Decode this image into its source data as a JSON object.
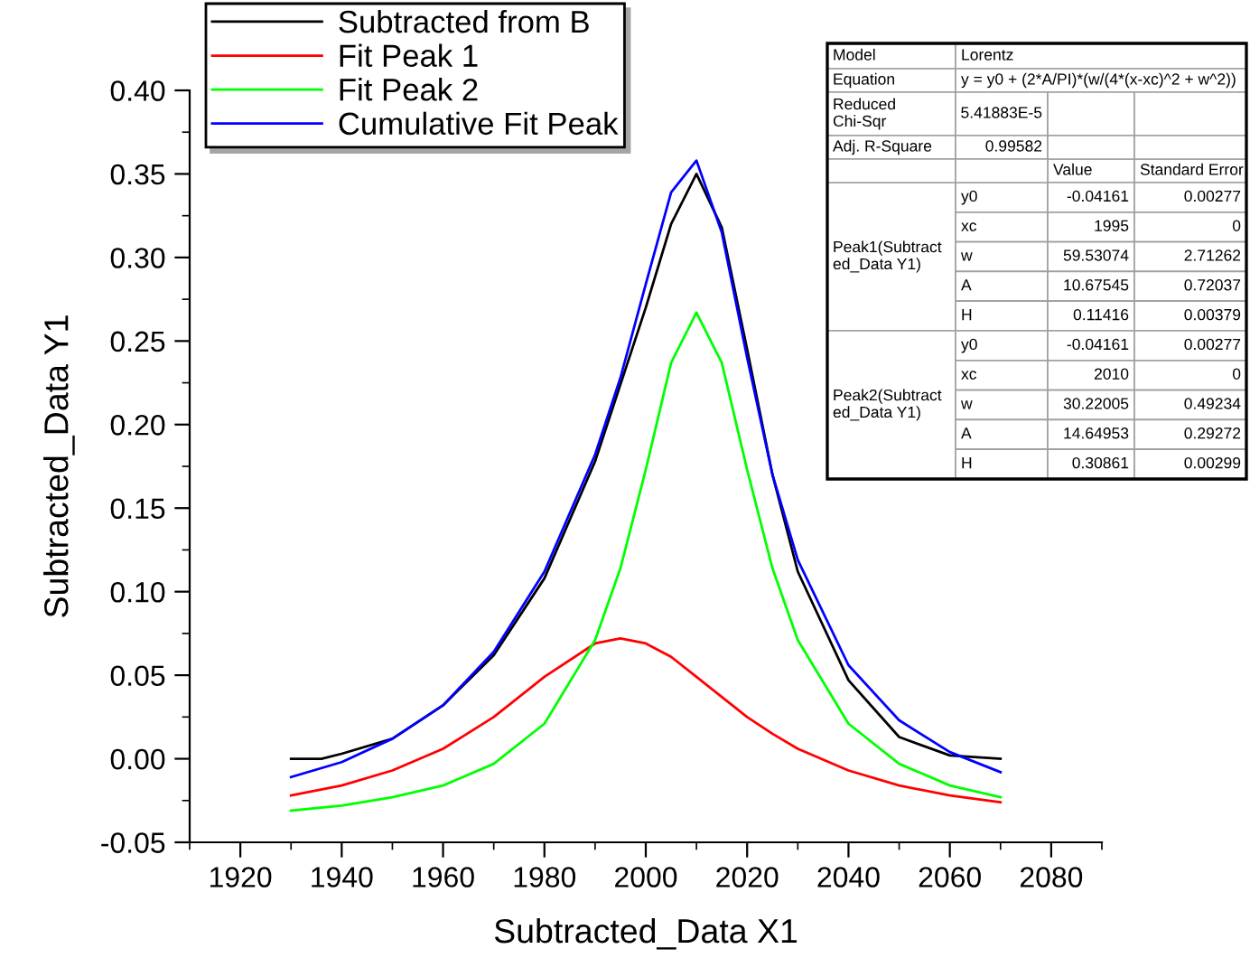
{
  "chart_data": {
    "type": "line",
    "xlabel": "Subtracted_Data X1",
    "ylabel": "Subtracted_Data Y1",
    "xlim": [
      1910,
      2090
    ],
    "xticks": [
      1920,
      1940,
      1960,
      1980,
      2000,
      2020,
      2040,
      2060,
      2080
    ],
    "ylim": [
      -0.05,
      0.4
    ],
    "yticks": [
      {
        "value": -0.05,
        "label": "-0.05"
      },
      {
        "value": 0,
        "label": "0.00"
      },
      {
        "value": 0.05,
        "label": "0.05"
      },
      {
        "value": 0.1,
        "label": "0.10"
      },
      {
        "value": 0.15,
        "label": "0.15"
      },
      {
        "value": 0.2,
        "label": "0.20"
      },
      {
        "value": 0.25,
        "label": "0.25"
      },
      {
        "value": 0.3,
        "label": "0.30"
      },
      {
        "value": 0.35,
        "label": "0.35"
      },
      {
        "value": 0.4,
        "label": "0.40"
      }
    ],
    "grid": false,
    "legend": "top left",
    "line_style": "solid",
    "marker": "none",
    "x": [
      1930,
      1940,
      1950,
      1960,
      1970,
      1980,
      1990,
      1995,
      2000,
      2005,
      2010,
      2015,
      2020,
      2025,
      2030,
      2040,
      2050,
      2060,
      2070
    ],
    "series": [
      {
        "name": "Subtracted from B",
        "color": "#000000",
        "x": [
          1930,
          1936,
          1940,
          1950,
          1960,
          1970,
          1980,
          1990,
          2000,
          2005,
          2010,
          2015,
          2020,
          2025,
          2030,
          2040,
          2050,
          2060,
          2070
        ],
        "values": [
          0.0,
          0.0,
          0.003,
          0.012,
          0.032,
          0.062,
          0.108,
          0.178,
          0.27,
          0.32,
          0.35,
          0.318,
          0.245,
          0.17,
          0.112,
          0.047,
          0.013,
          0.002,
          0.0
        ]
      },
      {
        "name": "Fit Peak 1",
        "color": "#ff0000",
        "values": [
          -0.022,
          -0.016,
          -0.007,
          0.006,
          0.025,
          0.049,
          0.069,
          0.072,
          0.069,
          0.061,
          0.049,
          0.037,
          0.025,
          0.015,
          0.006,
          -0.007,
          -0.016,
          -0.022,
          -0.026
        ]
      },
      {
        "name": "Fit Peak 2",
        "color": "#00ff00",
        "values": [
          -0.031,
          -0.028,
          -0.023,
          -0.016,
          -0.003,
          0.021,
          0.071,
          0.114,
          0.173,
          0.237,
          0.267,
          0.237,
          0.173,
          0.114,
          0.071,
          0.021,
          -0.003,
          -0.016,
          -0.023
        ]
      },
      {
        "name": "Cumulative Fit Peak",
        "color": "#0000ff",
        "values": [
          -0.011,
          -0.002,
          0.012,
          0.032,
          0.064,
          0.112,
          0.182,
          0.228,
          0.284,
          0.339,
          0.358,
          0.315,
          0.24,
          0.17,
          0.119,
          0.056,
          0.023,
          0.004,
          -0.008
        ]
      }
    ],
    "annotations": [
      "Model",
      "Lorentz",
      "Equation",
      "y = y0 + (2*A/PI)*(w/(4*(x-xc)^2 + w^2))",
      "Reduced\nChi-Sqr",
      "5.41883E-5",
      "Adj. R-Square",
      "0.99582",
      "Value",
      "Standard Error",
      "Peak1(Subtract\ned_Data Y1)",
      "y0",
      "-0.04161",
      "0.00277",
      "xc",
      "1995",
      "0",
      "w",
      "59.53074",
      "2.71262",
      "A",
      "10.67545",
      "0.72037",
      "H",
      "0.11416",
      "0.00379",
      "Peak2(Subtract\ned_Data Y1)",
      "y0",
      "-0.04161",
      "0.00277",
      "xc",
      "2010",
      "0",
      "w",
      "30.22005",
      "0.49234",
      "A",
      "14.64953",
      "0.29272",
      "H",
      "0.30861",
      "0.00299"
    ]
  }
}
